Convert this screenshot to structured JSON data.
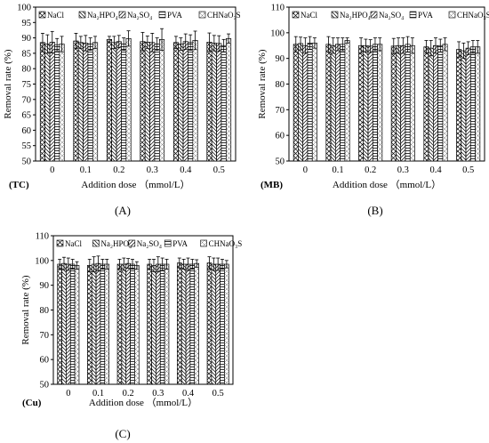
{
  "chart_data": [
    {
      "type": "bar",
      "panel_tag": "(TC)",
      "caption": "(A)",
      "xlabel": "Addition dose （mmol/L）",
      "ylabel": "Removal rate (%)",
      "ylim": [
        50,
        100
      ],
      "yticks": [
        50,
        55,
        60,
        65,
        70,
        75,
        80,
        85,
        90,
        95,
        100
      ],
      "categories": [
        "0",
        "0.1",
        "0.2",
        "0.3",
        "0.4",
        "0.5"
      ],
      "legend": "top",
      "series": [
        {
          "name": "NaCl",
          "values": [
            88.5,
            89.0,
            89.5,
            88.8,
            88.5,
            88.6
          ],
          "errors": [
            3.0,
            2.5,
            1.0,
            3.0,
            2.0,
            3.0
          ]
        },
        {
          "name": "Na₂HPO₄",
          "values": [
            88.0,
            88.5,
            88.5,
            88.6,
            88.0,
            88.3
          ],
          "errors": [
            3.0,
            2.0,
            2.0,
            2.0,
            2.0,
            2.5
          ]
        },
        {
          "name": "Na₂SO₄",
          "values": [
            88.6,
            88.3,
            88.8,
            88.5,
            88.8,
            88.2
          ],
          "errors": [
            3.5,
            2.5,
            2.0,
            3.0,
            2.5,
            2.5
          ]
        },
        {
          "name": "PVA",
          "values": [
            87.8,
            88.0,
            88.0,
            88.0,
            88.5,
            87.5
          ],
          "errors": [
            2.0,
            2.0,
            2.0,
            2.0,
            2.5,
            2.0
          ]
        },
        {
          "name": "CHNaO₃S",
          "values": [
            88.0,
            88.5,
            89.8,
            89.5,
            89.2,
            89.8
          ],
          "errors": [
            2.5,
            2.0,
            2.5,
            3.5,
            3.0,
            1.5
          ]
        }
      ]
    },
    {
      "type": "bar",
      "panel_tag": "(MB)",
      "caption": "(B)",
      "xlabel": "Addition dose （mmol/L）",
      "ylabel": "Removal rate (%)",
      "ylim": [
        50,
        110
      ],
      "yticks": [
        50,
        60,
        70,
        80,
        90,
        100,
        110
      ],
      "categories": [
        "0",
        "0.1",
        "0.2",
        "0.3",
        "0.4",
        "0.5"
      ],
      "legend": "top",
      "series": [
        {
          "name": "NaCl",
          "values": [
            95.5,
            95.5,
            95.0,
            94.8,
            94.5,
            93.5
          ],
          "errors": [
            3.0,
            3.0,
            3.0,
            3.0,
            2.5,
            3.0
          ]
        },
        {
          "name": "Na₂HPO₄",
          "values": [
            95.8,
            95.0,
            95.0,
            95.0,
            94.0,
            93.0
          ],
          "errors": [
            2.5,
            3.0,
            2.5,
            3.0,
            3.0,
            3.0
          ]
        },
        {
          "name": "Na₂SO₄",
          "values": [
            95.0,
            95.5,
            94.8,
            95.0,
            95.0,
            94.0
          ],
          "errors": [
            3.0,
            2.5,
            2.5,
            3.0,
            3.0,
            2.5
          ]
        },
        {
          "name": "PVA",
          "values": [
            96.0,
            95.5,
            95.5,
            95.5,
            95.0,
            94.5
          ],
          "errors": [
            2.5,
            2.5,
            2.5,
            3.0,
            2.5,
            2.5
          ]
        },
        {
          "name": "CHNaO₃S",
          "values": [
            96.0,
            97.0,
            95.5,
            95.0,
            95.5,
            94.5
          ],
          "errors": [
            2.0,
            1.0,
            2.5,
            3.0,
            2.5,
            2.5
          ]
        }
      ]
    },
    {
      "type": "bar",
      "panel_tag": "(Cu)",
      "caption": "(C)",
      "xlabel": "Addition dose （mmol/L）",
      "ylabel": "Removal rate (%)",
      "ylim": [
        50,
        110
      ],
      "yticks": [
        50,
        60,
        70,
        80,
        90,
        100,
        110
      ],
      "categories": [
        "0",
        "0.1",
        "0.2",
        "0.3",
        "0.4",
        "0.5"
      ],
      "legend": "top",
      "series": [
        {
          "name": "NaCl",
          "values": [
            98.5,
            98.0,
            98.5,
            98.5,
            99.0,
            99.0
          ],
          "errors": [
            2.0,
            2.5,
            2.0,
            2.0,
            2.0,
            2.5
          ]
        },
        {
          "name": "Na₂HPO₄",
          "values": [
            98.8,
            98.5,
            98.5,
            98.0,
            98.5,
            98.5
          ],
          "errors": [
            2.5,
            3.0,
            2.5,
            2.5,
            2.0,
            2.5
          ]
        },
        {
          "name": "Na₂SO₄",
          "values": [
            98.5,
            98.8,
            98.8,
            98.5,
            98.5,
            98.5
          ],
          "errors": [
            2.5,
            3.0,
            2.0,
            3.0,
            2.5,
            2.5
          ]
        },
        {
          "name": "PVA",
          "values": [
            98.5,
            98.5,
            98.5,
            98.5,
            98.5,
            98.5
          ],
          "errors": [
            2.0,
            2.0,
            2.0,
            2.5,
            2.0,
            2.0
          ]
        },
        {
          "name": "CHNaO₃S",
          "values": [
            98.0,
            98.5,
            98.0,
            98.5,
            98.8,
            98.5
          ],
          "errors": [
            1.5,
            2.0,
            1.5,
            2.0,
            1.5,
            1.5
          ]
        }
      ]
    }
  ]
}
